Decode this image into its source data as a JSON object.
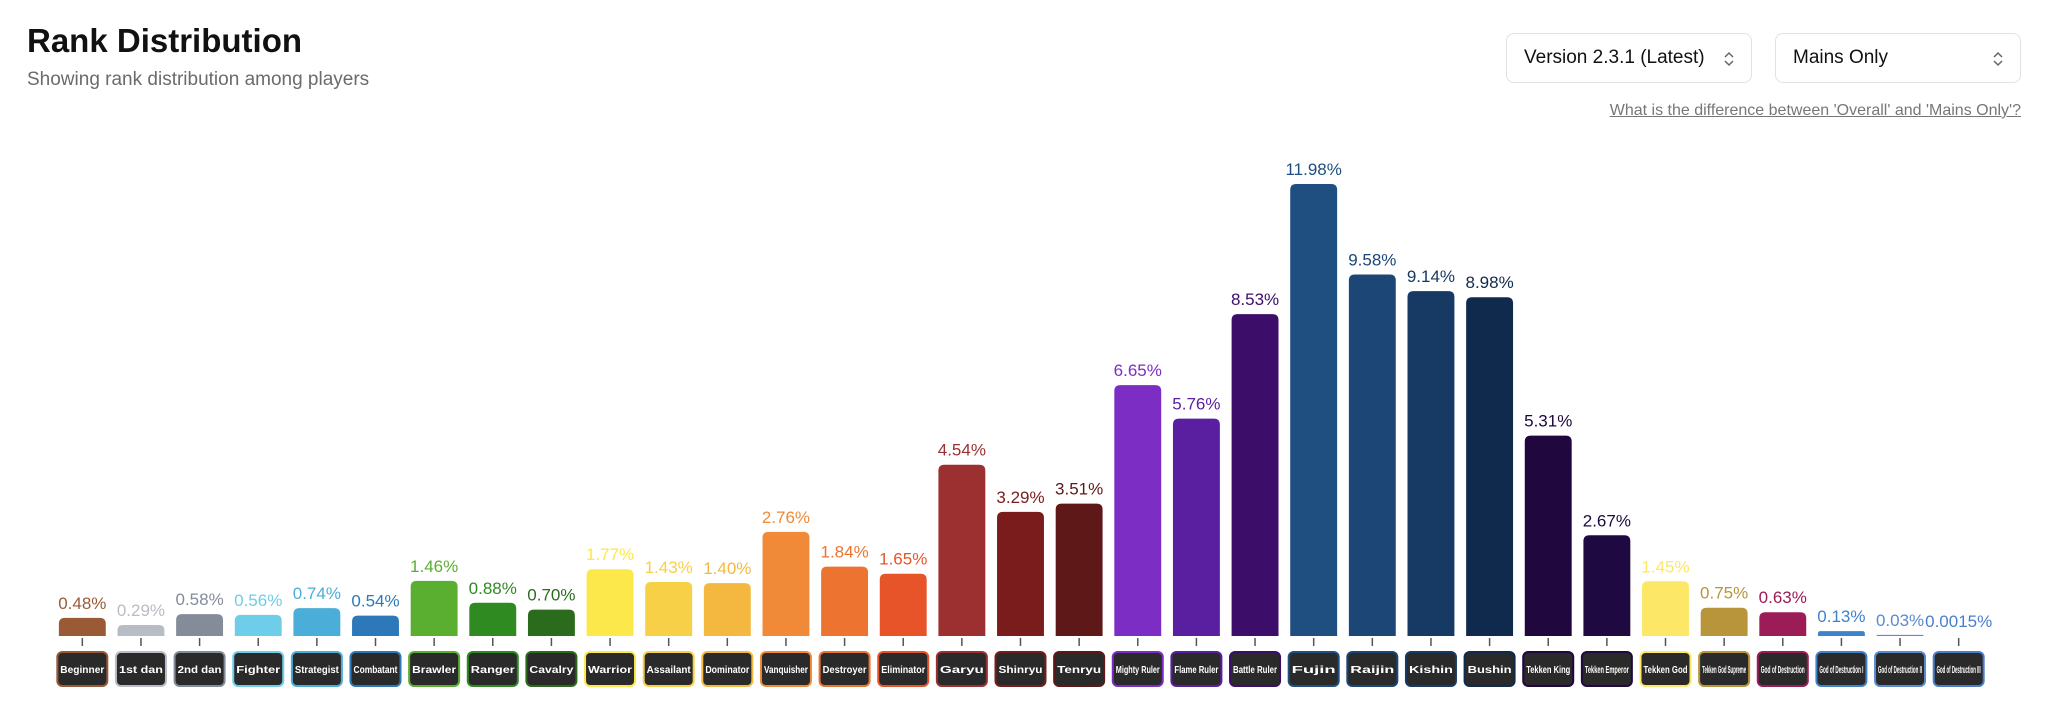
{
  "header": {
    "title": "Rank Distribution",
    "subtitle": "Showing rank distribution among players"
  },
  "controls": {
    "version": "Version 2.3.1 (Latest)",
    "mode": "Mains Only",
    "help_link": "What is the difference between 'Overall' and 'Mains Only'?"
  },
  "chart_data": {
    "type": "bar",
    "categories": [
      "Beginner",
      "1st dan",
      "2nd dan",
      "Fighter",
      "Strategist",
      "Combatant",
      "Brawler",
      "Ranger",
      "Cavalry",
      "Warrior",
      "Assailant",
      "Dominator",
      "Vanquisher",
      "Destroyer",
      "Eliminator",
      "Garyu",
      "Shinryu",
      "Tenryu",
      "Mighty Ruler",
      "Flame Ruler",
      "Battle Ruler",
      "Fujin",
      "Raijin",
      "Kishin",
      "Bushin",
      "Tekken King",
      "Tekken Emperor",
      "Tekken God",
      "Tekken God Supreme",
      "God of Destruction",
      "God of Destruction I",
      "God of Destruction II",
      "God of Destruction III"
    ],
    "values": [
      0.48,
      0.29,
      0.58,
      0.56,
      0.74,
      0.54,
      1.46,
      0.88,
      0.7,
      1.77,
      1.43,
      1.4,
      2.76,
      1.84,
      1.65,
      4.54,
      3.29,
      3.51,
      6.65,
      5.76,
      8.53,
      11.98,
      9.58,
      9.14,
      8.98,
      5.31,
      2.67,
      1.45,
      0.75,
      0.63,
      0.13,
      0.03,
      0.0015
    ],
    "value_labels": [
      "0.48%",
      "0.29%",
      "0.58%",
      "0.56%",
      "0.74%",
      "0.54%",
      "1.46%",
      "0.88%",
      "0.70%",
      "1.77%",
      "1.43%",
      "1.40%",
      "2.76%",
      "1.84%",
      "1.65%",
      "4.54%",
      "3.29%",
      "3.51%",
      "6.65%",
      "5.76%",
      "8.53%",
      "11.98%",
      "9.58%",
      "9.14%",
      "8.98%",
      "5.31%",
      "2.67%",
      "1.45%",
      "0.75%",
      "0.63%",
      "0.13%",
      "0.03%",
      "0.0015%"
    ],
    "colors": [
      "#9a5a36",
      "#b8bcc4",
      "#848b99",
      "#6ecde8",
      "#4aaed8",
      "#2d78b8",
      "#5aae30",
      "#2f8a22",
      "#2a6b1c",
      "#fce84a",
      "#f8d048",
      "#f4b840",
      "#f08a38",
      "#ec7430",
      "#e8542a",
      "#9c3030",
      "#7a1c1c",
      "#5e1818",
      "#7c2ec4",
      "#5a1ea0",
      "#3c0e6a",
      "#1f4e80",
      "#1c4676",
      "#163a64",
      "#0f2a4c",
      "#20073e",
      "#1e0a40",
      "#fce866",
      "#b8943a",
      "#9c1c58",
      "#3e82cc",
      "#5a8ad0",
      "#4a7ecc"
    ]
  }
}
